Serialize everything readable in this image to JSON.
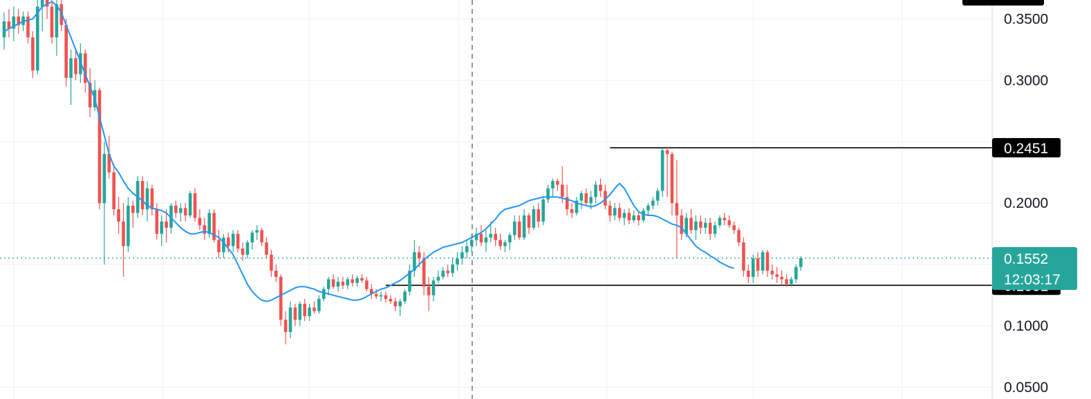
{
  "chart_data": {
    "type": "candlestick",
    "title": "",
    "xlabel": "",
    "ylabel": "",
    "ylim": [
      0.0405,
      0.3654
    ],
    "y_ticks": [
      {
        "value": 0.35,
        "label": "0.3500"
      },
      {
        "value": 0.3,
        "label": "0.3000"
      },
      {
        "value": 0.2,
        "label": "0.2000"
      },
      {
        "value": 0.1,
        "label": "0.1000"
      },
      {
        "value": 0.05,
        "label": "0.0500"
      }
    ],
    "grid": true,
    "colors": {
      "up": "#26a69a",
      "down": "#ef5350",
      "ma": "#2196f3",
      "last_price": "#26a69a",
      "level_line": "#000000",
      "level_tag": "#000000"
    },
    "current_price": {
      "value": 0.1552,
      "label": "0.1552",
      "countdown": "12:03:17"
    },
    "levels": [
      {
        "value": 0.2451,
        "label": "0.2451",
        "start_index": 127
      },
      {
        "value": 0.1331,
        "label": "0.1331",
        "start_index": 80
      }
    ],
    "moving_average": [
      0.34,
      0.342,
      0.344,
      0.346,
      0.348,
      0.349,
      0.35,
      0.355,
      0.36,
      0.362,
      0.364,
      0.361,
      0.355,
      0.345,
      0.335,
      0.325,
      0.315,
      0.305,
      0.295,
      0.285,
      0.27,
      0.255,
      0.24,
      0.23,
      0.225,
      0.218,
      0.212,
      0.208,
      0.205,
      0.202,
      0.198,
      0.196,
      0.195,
      0.194,
      0.192,
      0.188,
      0.184,
      0.18,
      0.177,
      0.175,
      0.175,
      0.176,
      0.177,
      0.176,
      0.174,
      0.172,
      0.168,
      0.163,
      0.158,
      0.15,
      0.142,
      0.134,
      0.128,
      0.124,
      0.121,
      0.12,
      0.121,
      0.123,
      0.125,
      0.127,
      0.129,
      0.131,
      0.132,
      0.132,
      0.131,
      0.13,
      0.128,
      0.127,
      0.126,
      0.125,
      0.124,
      0.123,
      0.122,
      0.121,
      0.121,
      0.122,
      0.124,
      0.126,
      0.128,
      0.13,
      0.131,
      0.133,
      0.135,
      0.137,
      0.14,
      0.143,
      0.146,
      0.15,
      0.154,
      0.157,
      0.16,
      0.162,
      0.164,
      0.165,
      0.166,
      0.167,
      0.168,
      0.17,
      0.172,
      0.174,
      0.176,
      0.179,
      0.183,
      0.187,
      0.192,
      0.195,
      0.196,
      0.197,
      0.198,
      0.2,
      0.202,
      0.203,
      0.204,
      0.205,
      0.205,
      0.205,
      0.205,
      0.204,
      0.203,
      0.202,
      0.2,
      0.199,
      0.198,
      0.197,
      0.198,
      0.2,
      0.203,
      0.207,
      0.212,
      0.216,
      0.212,
      0.205,
      0.198,
      0.193,
      0.191,
      0.19,
      0.19,
      0.189,
      0.187,
      0.185,
      0.183,
      0.182,
      0.18,
      0.175,
      0.17,
      0.165,
      0.162,
      0.16,
      0.157,
      0.155,
      0.152,
      0.15,
      0.148,
      0.147
    ],
    "candles": [
      {
        "o": 0.335,
        "h": 0.355,
        "l": 0.325,
        "c": 0.348
      },
      {
        "o": 0.348,
        "h": 0.358,
        "l": 0.335,
        "c": 0.342
      },
      {
        "o": 0.342,
        "h": 0.36,
        "l": 0.332,
        "c": 0.352
      },
      {
        "o": 0.352,
        "h": 0.358,
        "l": 0.338,
        "c": 0.345
      },
      {
        "o": 0.345,
        "h": 0.356,
        "l": 0.34,
        "c": 0.352
      },
      {
        "o": 0.352,
        "h": 0.356,
        "l": 0.33,
        "c": 0.335
      },
      {
        "o": 0.335,
        "h": 0.34,
        "l": 0.302,
        "c": 0.308
      },
      {
        "o": 0.308,
        "h": 0.368,
        "l": 0.305,
        "c": 0.36
      },
      {
        "o": 0.36,
        "h": 0.372,
        "l": 0.34,
        "c": 0.366
      },
      {
        "o": 0.366,
        "h": 0.37,
        "l": 0.35,
        "c": 0.36
      },
      {
        "o": 0.36,
        "h": 0.368,
        "l": 0.33,
        "c": 0.335
      },
      {
        "o": 0.335,
        "h": 0.368,
        "l": 0.32,
        "c": 0.362
      },
      {
        "o": 0.362,
        "h": 0.366,
        "l": 0.34,
        "c": 0.345
      },
      {
        "o": 0.345,
        "h": 0.35,
        "l": 0.295,
        "c": 0.302
      },
      {
        "o": 0.302,
        "h": 0.325,
        "l": 0.28,
        "c": 0.318
      },
      {
        "o": 0.318,
        "h": 0.325,
        "l": 0.3,
        "c": 0.305
      },
      {
        "o": 0.305,
        "h": 0.33,
        "l": 0.298,
        "c": 0.322
      },
      {
        "o": 0.322,
        "h": 0.325,
        "l": 0.29,
        "c": 0.298
      },
      {
        "o": 0.298,
        "h": 0.31,
        "l": 0.27,
        "c": 0.278
      },
      {
        "o": 0.278,
        "h": 0.3,
        "l": 0.275,
        "c": 0.292
      },
      {
        "o": 0.292,
        "h": 0.294,
        "l": 0.195,
        "c": 0.2
      },
      {
        "o": 0.2,
        "h": 0.25,
        "l": 0.15,
        "c": 0.24
      },
      {
        "o": 0.24,
        "h": 0.255,
        "l": 0.22,
        "c": 0.225
      },
      {
        "o": 0.225,
        "h": 0.232,
        "l": 0.19,
        "c": 0.195
      },
      {
        "o": 0.195,
        "h": 0.205,
        "l": 0.175,
        "c": 0.185
      },
      {
        "o": 0.185,
        "h": 0.2,
        "l": 0.14,
        "c": 0.165
      },
      {
        "o": 0.165,
        "h": 0.205,
        "l": 0.16,
        "c": 0.198
      },
      {
        "o": 0.198,
        "h": 0.202,
        "l": 0.18,
        "c": 0.192
      },
      {
        "o": 0.192,
        "h": 0.222,
        "l": 0.188,
        "c": 0.218
      },
      {
        "o": 0.218,
        "h": 0.222,
        "l": 0.19,
        "c": 0.195
      },
      {
        "o": 0.195,
        "h": 0.218,
        "l": 0.185,
        "c": 0.212
      },
      {
        "o": 0.212,
        "h": 0.215,
        "l": 0.19,
        "c": 0.195
      },
      {
        "o": 0.195,
        "h": 0.2,
        "l": 0.17,
        "c": 0.175
      },
      {
        "o": 0.175,
        "h": 0.19,
        "l": 0.165,
        "c": 0.185
      },
      {
        "o": 0.185,
        "h": 0.195,
        "l": 0.168,
        "c": 0.18
      },
      {
        "o": 0.18,
        "h": 0.2,
        "l": 0.175,
        "c": 0.198
      },
      {
        "o": 0.198,
        "h": 0.202,
        "l": 0.188,
        "c": 0.192
      },
      {
        "o": 0.192,
        "h": 0.2,
        "l": 0.185,
        "c": 0.196
      },
      {
        "o": 0.196,
        "h": 0.2,
        "l": 0.185,
        "c": 0.19
      },
      {
        "o": 0.19,
        "h": 0.21,
        "l": 0.188,
        "c": 0.208
      },
      {
        "o": 0.208,
        "h": 0.212,
        "l": 0.185,
        "c": 0.188
      },
      {
        "o": 0.188,
        "h": 0.195,
        "l": 0.178,
        "c": 0.182
      },
      {
        "o": 0.182,
        "h": 0.188,
        "l": 0.17,
        "c": 0.175
      },
      {
        "o": 0.175,
        "h": 0.195,
        "l": 0.172,
        "c": 0.192
      },
      {
        "o": 0.192,
        "h": 0.195,
        "l": 0.168,
        "c": 0.17
      },
      {
        "o": 0.17,
        "h": 0.178,
        "l": 0.155,
        "c": 0.16
      },
      {
        "o": 0.16,
        "h": 0.175,
        "l": 0.155,
        "c": 0.172
      },
      {
        "o": 0.172,
        "h": 0.176,
        "l": 0.16,
        "c": 0.165
      },
      {
        "o": 0.165,
        "h": 0.178,
        "l": 0.16,
        "c": 0.175
      },
      {
        "o": 0.175,
        "h": 0.178,
        "l": 0.16,
        "c": 0.163
      },
      {
        "o": 0.163,
        "h": 0.168,
        "l": 0.153,
        "c": 0.158
      },
      {
        "o": 0.158,
        "h": 0.17,
        "l": 0.155,
        "c": 0.168
      },
      {
        "o": 0.168,
        "h": 0.178,
        "l": 0.162,
        "c": 0.176
      },
      {
        "o": 0.176,
        "h": 0.182,
        "l": 0.17,
        "c": 0.178
      },
      {
        "o": 0.178,
        "h": 0.18,
        "l": 0.165,
        "c": 0.168
      },
      {
        "o": 0.168,
        "h": 0.172,
        "l": 0.155,
        "c": 0.158
      },
      {
        "o": 0.158,
        "h": 0.162,
        "l": 0.14,
        "c": 0.145
      },
      {
        "o": 0.145,
        "h": 0.15,
        "l": 0.136,
        "c": 0.14
      },
      {
        "o": 0.14,
        "h": 0.142,
        "l": 0.1,
        "c": 0.105
      },
      {
        "o": 0.105,
        "h": 0.112,
        "l": 0.085,
        "c": 0.095
      },
      {
        "o": 0.095,
        "h": 0.12,
        "l": 0.09,
        "c": 0.115
      },
      {
        "o": 0.115,
        "h": 0.118,
        "l": 0.1,
        "c": 0.105
      },
      {
        "o": 0.105,
        "h": 0.12,
        "l": 0.1,
        "c": 0.118
      },
      {
        "o": 0.118,
        "h": 0.122,
        "l": 0.104,
        "c": 0.108
      },
      {
        "o": 0.108,
        "h": 0.118,
        "l": 0.104,
        "c": 0.115
      },
      {
        "o": 0.115,
        "h": 0.12,
        "l": 0.11,
        "c": 0.112
      },
      {
        "o": 0.112,
        "h": 0.125,
        "l": 0.11,
        "c": 0.122
      },
      {
        "o": 0.122,
        "h": 0.132,
        "l": 0.12,
        "c": 0.13
      },
      {
        "o": 0.13,
        "h": 0.14,
        "l": 0.125,
        "c": 0.138
      },
      {
        "o": 0.138,
        "h": 0.142,
        "l": 0.13,
        "c": 0.132
      },
      {
        "o": 0.132,
        "h": 0.14,
        "l": 0.128,
        "c": 0.136
      },
      {
        "o": 0.136,
        "h": 0.14,
        "l": 0.13,
        "c": 0.133
      },
      {
        "o": 0.133,
        "h": 0.14,
        "l": 0.13,
        "c": 0.138
      },
      {
        "o": 0.138,
        "h": 0.142,
        "l": 0.132,
        "c": 0.135
      },
      {
        "o": 0.135,
        "h": 0.141,
        "l": 0.132,
        "c": 0.139
      },
      {
        "o": 0.139,
        "h": 0.142,
        "l": 0.135,
        "c": 0.137
      },
      {
        "o": 0.137,
        "h": 0.14,
        "l": 0.128,
        "c": 0.13
      },
      {
        "o": 0.13,
        "h": 0.134,
        "l": 0.122,
        "c": 0.126
      },
      {
        "o": 0.126,
        "h": 0.13,
        "l": 0.122,
        "c": 0.124
      },
      {
        "o": 0.124,
        "h": 0.128,
        "l": 0.12,
        "c": 0.125
      },
      {
        "o": 0.125,
        "h": 0.128,
        "l": 0.119,
        "c": 0.122
      },
      {
        "o": 0.122,
        "h": 0.125,
        "l": 0.118,
        "c": 0.12
      },
      {
        "o": 0.12,
        "h": 0.123,
        "l": 0.112,
        "c": 0.116
      },
      {
        "o": 0.116,
        "h": 0.122,
        "l": 0.108,
        "c": 0.12
      },
      {
        "o": 0.12,
        "h": 0.13,
        "l": 0.118,
        "c": 0.128
      },
      {
        "o": 0.128,
        "h": 0.15,
        "l": 0.125,
        "c": 0.145
      },
      {
        "o": 0.145,
        "h": 0.17,
        "l": 0.14,
        "c": 0.16
      },
      {
        "o": 0.16,
        "h": 0.165,
        "l": 0.148,
        "c": 0.155
      },
      {
        "o": 0.155,
        "h": 0.16,
        "l": 0.125,
        "c": 0.132
      },
      {
        "o": 0.132,
        "h": 0.14,
        "l": 0.112,
        "c": 0.125
      },
      {
        "o": 0.125,
        "h": 0.14,
        "l": 0.12,
        "c": 0.137
      },
      {
        "o": 0.137,
        "h": 0.145,
        "l": 0.135,
        "c": 0.14
      },
      {
        "o": 0.14,
        "h": 0.148,
        "l": 0.138,
        "c": 0.145
      },
      {
        "o": 0.145,
        "h": 0.15,
        "l": 0.14,
        "c": 0.143
      },
      {
        "o": 0.143,
        "h": 0.155,
        "l": 0.14,
        "c": 0.15
      },
      {
        "o": 0.15,
        "h": 0.16,
        "l": 0.145,
        "c": 0.155
      },
      {
        "o": 0.155,
        "h": 0.165,
        "l": 0.15,
        "c": 0.16
      },
      {
        "o": 0.16,
        "h": 0.17,
        "l": 0.155,
        "c": 0.165
      },
      {
        "o": 0.165,
        "h": 0.175,
        "l": 0.16,
        "c": 0.17
      },
      {
        "o": 0.17,
        "h": 0.18,
        "l": 0.165,
        "c": 0.175
      },
      {
        "o": 0.175,
        "h": 0.182,
        "l": 0.165,
        "c": 0.168
      },
      {
        "o": 0.168,
        "h": 0.178,
        "l": 0.16,
        "c": 0.172
      },
      {
        "o": 0.172,
        "h": 0.185,
        "l": 0.168,
        "c": 0.175
      },
      {
        "o": 0.175,
        "h": 0.18,
        "l": 0.165,
        "c": 0.17
      },
      {
        "o": 0.17,
        "h": 0.175,
        "l": 0.162,
        "c": 0.165
      },
      {
        "o": 0.165,
        "h": 0.17,
        "l": 0.16,
        "c": 0.168
      },
      {
        "o": 0.168,
        "h": 0.176,
        "l": 0.162,
        "c": 0.174
      },
      {
        "o": 0.174,
        "h": 0.19,
        "l": 0.17,
        "c": 0.185
      },
      {
        "o": 0.185,
        "h": 0.19,
        "l": 0.17,
        "c": 0.172
      },
      {
        "o": 0.172,
        "h": 0.195,
        "l": 0.17,
        "c": 0.19
      },
      {
        "o": 0.19,
        "h": 0.192,
        "l": 0.175,
        "c": 0.18
      },
      {
        "o": 0.18,
        "h": 0.198,
        "l": 0.178,
        "c": 0.195
      },
      {
        "o": 0.195,
        "h": 0.2,
        "l": 0.18,
        "c": 0.185
      },
      {
        "o": 0.185,
        "h": 0.205,
        "l": 0.182,
        "c": 0.203
      },
      {
        "o": 0.203,
        "h": 0.215,
        "l": 0.2,
        "c": 0.212
      },
      {
        "o": 0.212,
        "h": 0.22,
        "l": 0.205,
        "c": 0.218
      },
      {
        "o": 0.218,
        "h": 0.22,
        "l": 0.21,
        "c": 0.215
      },
      {
        "o": 0.215,
        "h": 0.23,
        "l": 0.2,
        "c": 0.205
      },
      {
        "o": 0.205,
        "h": 0.215,
        "l": 0.19,
        "c": 0.195
      },
      {
        "o": 0.195,
        "h": 0.2,
        "l": 0.188,
        "c": 0.192
      },
      {
        "o": 0.192,
        "h": 0.205,
        "l": 0.19,
        "c": 0.202
      },
      {
        "o": 0.202,
        "h": 0.21,
        "l": 0.195,
        "c": 0.208
      },
      {
        "o": 0.208,
        "h": 0.212,
        "l": 0.198,
        "c": 0.2
      },
      {
        "o": 0.2,
        "h": 0.21,
        "l": 0.195,
        "c": 0.205
      },
      {
        "o": 0.205,
        "h": 0.218,
        "l": 0.2,
        "c": 0.215
      },
      {
        "o": 0.215,
        "h": 0.22,
        "l": 0.205,
        "c": 0.21
      },
      {
        "o": 0.21,
        "h": 0.215,
        "l": 0.195,
        "c": 0.198
      },
      {
        "o": 0.198,
        "h": 0.202,
        "l": 0.185,
        "c": 0.19
      },
      {
        "o": 0.19,
        "h": 0.2,
        "l": 0.186,
        "c": 0.196
      },
      {
        "o": 0.196,
        "h": 0.2,
        "l": 0.185,
        "c": 0.188
      },
      {
        "o": 0.188,
        "h": 0.195,
        "l": 0.182,
        "c": 0.192
      },
      {
        "o": 0.192,
        "h": 0.196,
        "l": 0.183,
        "c": 0.186
      },
      {
        "o": 0.186,
        "h": 0.194,
        "l": 0.184,
        "c": 0.19
      },
      {
        "o": 0.19,
        "h": 0.193,
        "l": 0.182,
        "c": 0.186
      },
      {
        "o": 0.186,
        "h": 0.196,
        "l": 0.184,
        "c": 0.194
      },
      {
        "o": 0.194,
        "h": 0.2,
        "l": 0.19,
        "c": 0.198
      },
      {
        "o": 0.198,
        "h": 0.205,
        "l": 0.195,
        "c": 0.202
      },
      {
        "o": 0.202,
        "h": 0.212,
        "l": 0.198,
        "c": 0.21
      },
      {
        "o": 0.21,
        "h": 0.245,
        "l": 0.205,
        "c": 0.243
      },
      {
        "o": 0.243,
        "h": 0.246,
        "l": 0.205,
        "c": 0.24
      },
      {
        "o": 0.24,
        "h": 0.242,
        "l": 0.19,
        "c": 0.2
      },
      {
        "o": 0.2,
        "h": 0.235,
        "l": 0.155,
        "c": 0.19
      },
      {
        "o": 0.19,
        "h": 0.195,
        "l": 0.17,
        "c": 0.175
      },
      {
        "o": 0.175,
        "h": 0.192,
        "l": 0.172,
        "c": 0.188
      },
      {
        "o": 0.188,
        "h": 0.195,
        "l": 0.175,
        "c": 0.178
      },
      {
        "o": 0.178,
        "h": 0.19,
        "l": 0.17,
        "c": 0.185
      },
      {
        "o": 0.185,
        "h": 0.19,
        "l": 0.175,
        "c": 0.18
      },
      {
        "o": 0.18,
        "h": 0.188,
        "l": 0.175,
        "c": 0.184
      },
      {
        "o": 0.184,
        "h": 0.188,
        "l": 0.17,
        "c": 0.175
      },
      {
        "o": 0.175,
        "h": 0.185,
        "l": 0.172,
        "c": 0.182
      },
      {
        "o": 0.182,
        "h": 0.19,
        "l": 0.18,
        "c": 0.188
      },
      {
        "o": 0.188,
        "h": 0.192,
        "l": 0.182,
        "c": 0.186
      },
      {
        "o": 0.186,
        "h": 0.19,
        "l": 0.18,
        "c": 0.182
      },
      {
        "o": 0.182,
        "h": 0.185,
        "l": 0.175,
        "c": 0.178
      },
      {
        "o": 0.178,
        "h": 0.18,
        "l": 0.165,
        "c": 0.168
      },
      {
        "o": 0.168,
        "h": 0.172,
        "l": 0.14,
        "c": 0.145
      },
      {
        "o": 0.145,
        "h": 0.15,
        "l": 0.135,
        "c": 0.14
      },
      {
        "o": 0.14,
        "h": 0.158,
        "l": 0.135,
        "c": 0.155
      },
      {
        "o": 0.155,
        "h": 0.16,
        "l": 0.14,
        "c": 0.145
      },
      {
        "o": 0.145,
        "h": 0.162,
        "l": 0.142,
        "c": 0.16
      },
      {
        "o": 0.16,
        "h": 0.162,
        "l": 0.14,
        "c": 0.145
      },
      {
        "o": 0.145,
        "h": 0.15,
        "l": 0.138,
        "c": 0.142
      },
      {
        "o": 0.142,
        "h": 0.148,
        "l": 0.135,
        "c": 0.14
      },
      {
        "o": 0.14,
        "h": 0.145,
        "l": 0.133,
        "c": 0.138
      },
      {
        "o": 0.138,
        "h": 0.142,
        "l": 0.132,
        "c": 0.134
      },
      {
        "o": 0.134,
        "h": 0.14,
        "l": 0.132,
        "c": 0.138
      },
      {
        "o": 0.138,
        "h": 0.15,
        "l": 0.135,
        "c": 0.148
      },
      {
        "o": 0.148,
        "h": 0.157,
        "l": 0.145,
        "c": 0.1552
      }
    ]
  }
}
